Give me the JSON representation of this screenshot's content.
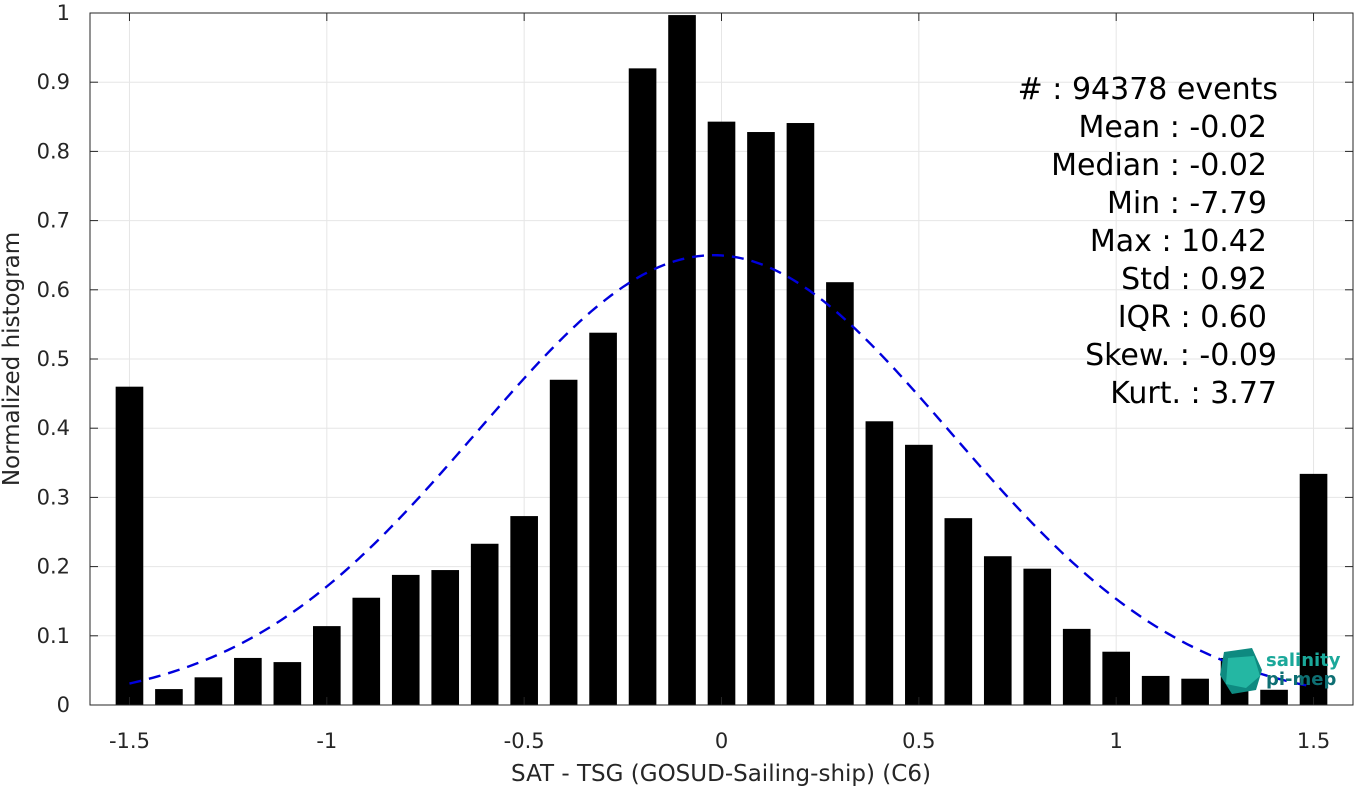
{
  "chart_data": {
    "type": "bar",
    "title": "",
    "xlabel": "SAT - TSG (GOSUD-Sailing-ship) (C6)",
    "ylabel": "Normalized histogram",
    "xlim": [
      -1.6,
      1.6
    ],
    "ylim": [
      0,
      1
    ],
    "grid": true,
    "bar_width": 0.07,
    "x": [
      -1.5,
      -1.4,
      -1.3,
      -1.2,
      -1.1,
      -1.0,
      -0.9,
      -0.8,
      -0.7,
      -0.6,
      -0.5,
      -0.4,
      -0.3,
      -0.2,
      -0.1,
      0.0,
      0.1,
      0.2,
      0.3,
      0.4,
      0.5,
      0.6,
      0.7,
      0.8,
      0.9,
      1.0,
      1.1,
      1.2,
      1.3,
      1.4,
      1.5
    ],
    "values": [
      0.46,
      0.023,
      0.04,
      0.068,
      0.062,
      0.114,
      0.155,
      0.188,
      0.195,
      0.233,
      0.273,
      0.47,
      0.538,
      0.92,
      0.997,
      0.843,
      0.828,
      0.841,
      0.611,
      0.41,
      0.376,
      0.27,
      0.215,
      0.197,
      0.11,
      0.077,
      0.042,
      0.038,
      0.068,
      0.022,
      0.334
    ],
    "x_ticks": [
      -1.5,
      -1,
      -0.5,
      0,
      0.5,
      1,
      1.5
    ],
    "x_tick_labels": [
      "-1.5",
      "-1",
      "-0.5",
      "0",
      "0.5",
      "1",
      "1.5"
    ],
    "y_ticks": [
      0,
      0.1,
      0.2,
      0.3,
      0.4,
      0.5,
      0.6,
      0.7,
      0.8,
      0.9,
      1
    ],
    "y_tick_labels": [
      "0",
      "0.1",
      "0.2",
      "0.3",
      "0.4",
      "0.5",
      "0.6",
      "0.7",
      "0.8",
      "0.9",
      "1"
    ],
    "bar_color": "#000000",
    "fit_curve": {
      "style": "dashed",
      "color": "#0000dd",
      "mean": -0.02,
      "std": 0.6,
      "peak": 0.65,
      "x_range": [
        -1.5,
        1.5
      ]
    }
  },
  "stats": [
    {
      "label": "#  : 94378 events"
    },
    {
      "label": "Mean : -0.02"
    },
    {
      "label": "Median : -0.02"
    },
    {
      "label": "Min : -7.79"
    },
    {
      "label": "Max : 10.42"
    },
    {
      "label": "Std : 0.92"
    },
    {
      "label": "IQR : 0.60"
    },
    {
      "label": "Skew. : -0.09"
    },
    {
      "label": "Kurt. : 3.77"
    }
  ],
  "logo": {
    "line1": "salinity",
    "line2": "pi-mep",
    "color1": "#1aa89a",
    "color2": "#0e6f73"
  }
}
